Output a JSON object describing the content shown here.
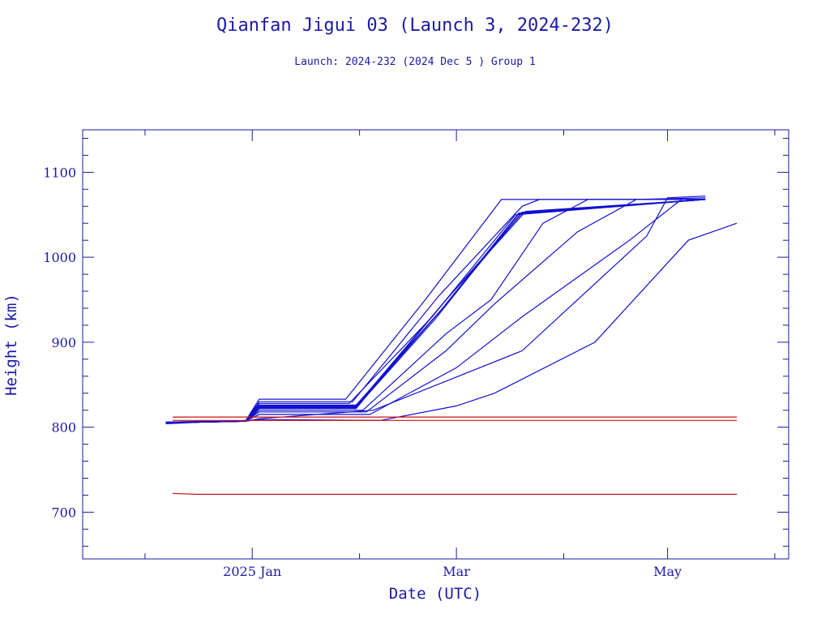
{
  "chart_data": {
    "type": "line",
    "title": "Qianfan Jigui 03 (Launch 3, 2024-232)",
    "subtitle": "Launch: 2024-232  (2024 Dec  5 )  Group 1",
    "xlabel": "Date (UTC)",
    "ylabel": "Height (km)",
    "xlim": [
      "2024-11-13",
      "2025-06-05"
    ],
    "ylim": [
      645,
      1150
    ],
    "x_ticks_major": [
      {
        "date": "2025-01-01",
        "label": "2025 Jan"
      },
      {
        "date": "2025-03-01",
        "label": "Mar"
      },
      {
        "date": "2025-05-01",
        "label": "May"
      }
    ],
    "x_ticks_minor": [
      "2024-12-01",
      "2025-01-01",
      "2025-02-01",
      "2025-03-01",
      "2025-04-01",
      "2025-05-01",
      "2025-06-01"
    ],
    "y_ticks_major": [
      700,
      800,
      900,
      1000,
      1100
    ],
    "y_tick_minor_step": 20,
    "grid": false,
    "colors": {
      "active": "#1010d0",
      "debris": "#cc1111",
      "text": "#1a1aa6"
    },
    "series": [
      {
        "color": "#1010d0",
        "points": [
          [
            "2024-12-07",
            805
          ],
          [
            "2024-12-18",
            806
          ],
          [
            "2024-12-30",
            807
          ],
          [
            "2025-01-03",
            828
          ],
          [
            "2025-01-29",
            828
          ],
          [
            "2025-02-22",
            930
          ],
          [
            "2025-03-18",
            1050
          ],
          [
            "2025-05-12",
            1068
          ]
        ]
      },
      {
        "color": "#1010d0",
        "points": [
          [
            "2024-12-07",
            805
          ],
          [
            "2024-12-18",
            806
          ],
          [
            "2024-12-30",
            807
          ],
          [
            "2025-01-03",
            824
          ],
          [
            "2025-01-31",
            824
          ],
          [
            "2025-02-24",
            935
          ],
          [
            "2025-03-19",
            1052
          ],
          [
            "2025-05-12",
            1068
          ]
        ]
      },
      {
        "color": "#1010d0",
        "points": [
          [
            "2024-12-07",
            806
          ],
          [
            "2024-12-18",
            807
          ],
          [
            "2024-12-30",
            807
          ],
          [
            "2025-01-03",
            822
          ],
          [
            "2025-01-31",
            822
          ],
          [
            "2025-02-26",
            950
          ],
          [
            "2025-03-21",
            1054
          ],
          [
            "2025-05-12",
            1068
          ]
        ]
      },
      {
        "color": "#1010d0",
        "points": [
          [
            "2024-12-07",
            805
          ],
          [
            "2024-12-18",
            806
          ],
          [
            "2024-12-30",
            807
          ],
          [
            "2025-01-03",
            826
          ],
          [
            "2025-01-31",
            826
          ],
          [
            "2025-02-25",
            940
          ],
          [
            "2025-03-20",
            1053
          ],
          [
            "2025-05-12",
            1068
          ]
        ]
      },
      {
        "color": "#1010d0",
        "points": [
          [
            "2024-12-07",
            804
          ],
          [
            "2024-12-18",
            806
          ],
          [
            "2024-12-30",
            808
          ],
          [
            "2025-01-03",
            823
          ],
          [
            "2025-01-31",
            823
          ],
          [
            "2025-02-23",
            928
          ],
          [
            "2025-03-19",
            1051
          ],
          [
            "2025-05-12",
            1068
          ]
        ]
      },
      {
        "color": "#1010d0",
        "points": [
          [
            "2024-12-07",
            806
          ],
          [
            "2024-12-18",
            806
          ],
          [
            "2024-12-30",
            807
          ],
          [
            "2025-01-03",
            825
          ],
          [
            "2025-01-31",
            825
          ],
          [
            "2025-02-25",
            945
          ],
          [
            "2025-03-20",
            1052
          ],
          [
            "2025-05-12",
            1068
          ]
        ]
      },
      {
        "color": "#1010d0",
        "points": [
          [
            "2024-12-07",
            805
          ],
          [
            "2024-12-18",
            806
          ],
          [
            "2024-12-30",
            807
          ],
          [
            "2025-01-03",
            833
          ],
          [
            "2025-01-28",
            833
          ],
          [
            "2025-02-20",
            950
          ],
          [
            "2025-03-14",
            1068
          ],
          [
            "2025-05-12",
            1068
          ]
        ]
      },
      {
        "color": "#1010d0",
        "points": [
          [
            "2024-12-07",
            805
          ],
          [
            "2024-12-18",
            806
          ],
          [
            "2024-12-30",
            807
          ],
          [
            "2025-01-03",
            830
          ],
          [
            "2025-01-30",
            830
          ],
          [
            "2025-02-24",
            955
          ],
          [
            "2025-03-20",
            1060
          ],
          [
            "2025-03-25",
            1068
          ],
          [
            "2025-05-12",
            1068
          ]
        ]
      },
      {
        "color": "#1010d0",
        "points": [
          [
            "2024-12-07",
            805
          ],
          [
            "2024-12-18",
            806
          ],
          [
            "2024-12-30",
            807
          ],
          [
            "2025-01-03",
            820
          ],
          [
            "2025-02-02",
            820
          ],
          [
            "2025-02-26",
            910
          ],
          [
            "2025-03-11",
            950
          ],
          [
            "2025-03-26",
            1040
          ],
          [
            "2025-04-08",
            1068
          ],
          [
            "2025-05-12",
            1068
          ]
        ]
      },
      {
        "color": "#1010d0",
        "points": [
          [
            "2024-12-07",
            805
          ],
          [
            "2024-12-18",
            806
          ],
          [
            "2024-12-30",
            807
          ],
          [
            "2025-01-03",
            818
          ],
          [
            "2025-02-03",
            818
          ],
          [
            "2025-02-26",
            890
          ],
          [
            "2025-03-12",
            945
          ],
          [
            "2025-04-05",
            1030
          ],
          [
            "2025-04-22",
            1068
          ],
          [
            "2025-05-12",
            1070
          ]
        ]
      },
      {
        "color": "#1010d0",
        "points": [
          [
            "2024-12-07",
            805
          ],
          [
            "2024-12-18",
            806
          ],
          [
            "2024-12-30",
            807
          ],
          [
            "2025-01-03",
            815
          ],
          [
            "2025-02-04",
            815
          ],
          [
            "2025-03-01",
            870
          ],
          [
            "2025-03-20",
            930
          ],
          [
            "2025-04-20",
            1020
          ],
          [
            "2025-05-05",
            1068
          ],
          [
            "2025-05-12",
            1068
          ]
        ]
      },
      {
        "color": "#1010d0",
        "points": [
          [
            "2024-12-07",
            805
          ],
          [
            "2024-12-18",
            806
          ],
          [
            "2024-12-30",
            807
          ],
          [
            "2025-01-03",
            810
          ],
          [
            "2025-02-05",
            820
          ],
          [
            "2025-03-20",
            890
          ],
          [
            "2025-04-25",
            1025
          ],
          [
            "2025-05-01",
            1070
          ],
          [
            "2025-05-12",
            1072
          ]
        ]
      },
      {
        "color": "#1010d0",
        "points": [
          [
            "2024-12-07",
            805
          ],
          [
            "2024-12-18",
            806
          ],
          [
            "2024-12-30",
            807
          ],
          [
            "2025-01-03",
            809
          ],
          [
            "2025-02-07",
            808
          ],
          [
            "2025-03-01",
            825
          ],
          [
            "2025-03-12",
            840
          ],
          [
            "2025-04-10",
            900
          ],
          [
            "2025-05-07",
            1020
          ],
          [
            "2025-05-21",
            1040
          ]
        ]
      },
      {
        "color": "#cc1111",
        "points": [
          [
            "2024-12-09",
            812
          ],
          [
            "2025-05-21",
            812
          ]
        ]
      },
      {
        "color": "#cc1111",
        "points": [
          [
            "2024-12-09",
            808
          ],
          [
            "2025-05-21",
            808
          ]
        ]
      },
      {
        "color": "#cc1111",
        "points": [
          [
            "2024-12-09",
            722
          ],
          [
            "2024-12-16",
            721
          ],
          [
            "2025-05-21",
            721
          ]
        ]
      }
    ]
  }
}
